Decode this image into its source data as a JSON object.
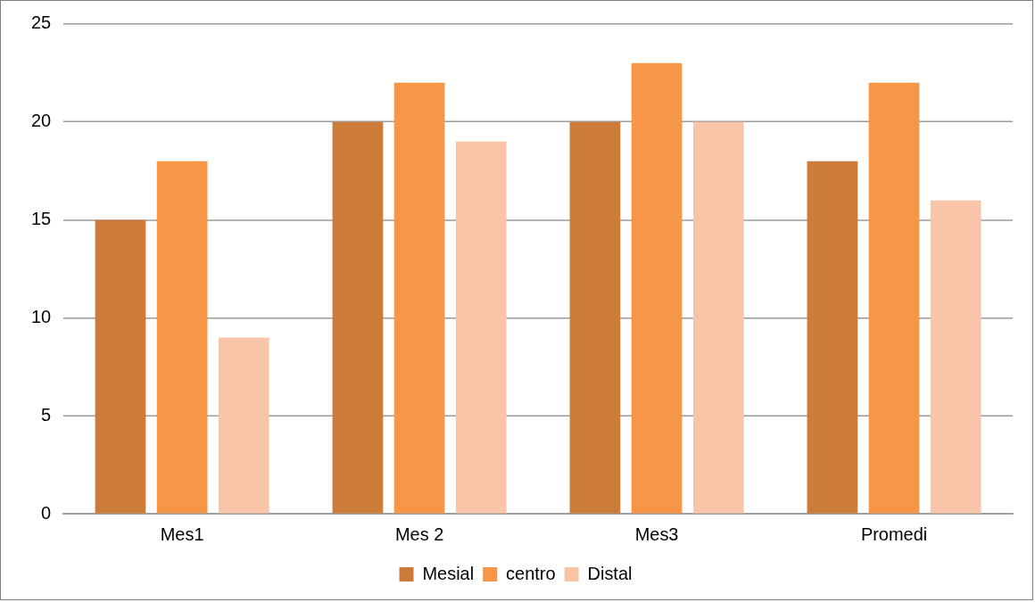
{
  "chart_data": {
    "type": "bar",
    "categories": [
      "Mes1",
      "Mes 2",
      "Mes3",
      "Promedi"
    ],
    "series": [
      {
        "name": "Mesial",
        "color": "#cd7b38",
        "values": [
          15,
          20,
          20,
          18
        ]
      },
      {
        "name": "centro",
        "color": "#f79646",
        "values": [
          18,
          22,
          23,
          22
        ]
      },
      {
        "name": "Distal",
        "color": "#f9c4a8",
        "values": [
          9,
          19,
          20,
          16
        ]
      }
    ],
    "ylim": [
      0,
      25
    ],
    "yticks": [
      0,
      5,
      10,
      15,
      20,
      25
    ],
    "grid": "y",
    "legend": "bottom"
  }
}
